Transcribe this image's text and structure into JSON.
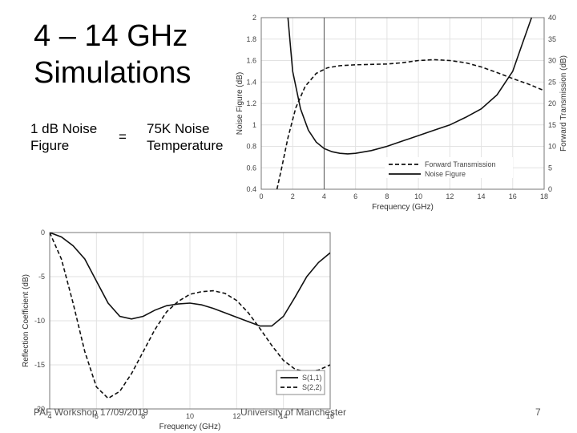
{
  "slide": {
    "title_line1": "4 – 14 GHz",
    "title_line2": "Simulations",
    "equivalence": {
      "left_line1": "1 dB Noise",
      "left_line2": "Figure",
      "sign": "=",
      "right_line1": "75K Noise",
      "right_line2": "Temperature"
    },
    "footer": {
      "left": "PAF Workshop 17/09/2019",
      "center": "University of Manchester",
      "page": "7"
    }
  },
  "chart_data": [
    {
      "type": "line",
      "xlabel": "Frequency (GHz)",
      "ylabel": "Noise Figure (dB)",
      "y2label": "Forward Transmission (dB)",
      "xlim": [
        0,
        18
      ],
      "ylim": [
        0.4,
        2
      ],
      "y2lim": [
        0,
        40
      ],
      "xticks": [
        "0",
        "2",
        "4",
        "6",
        "8",
        "10",
        "12",
        "14",
        "16",
        "18"
      ],
      "yticks": [
        "0.4",
        "0.6",
        "0.8",
        "1",
        "1.2",
        "1.4",
        "1.6",
        "1.8",
        "2"
      ],
      "y2ticks": [
        "0",
        "5",
        "10",
        "15",
        "20",
        "25",
        "30",
        "35",
        "40"
      ],
      "marker_x": 4,
      "legend_position": "bottom-right",
      "series": [
        {
          "name": "Forward Transmission",
          "style": "dashed",
          "axis": "right",
          "x": [
            1.0,
            1.3,
            1.7,
            2.2,
            2.8,
            3.5,
            4.2,
            5,
            6,
            7,
            8,
            9,
            10,
            11,
            12,
            13,
            14,
            15,
            16,
            17,
            18
          ],
          "y": [
            0,
            5,
            12,
            19,
            24,
            27,
            28.3,
            28.8,
            29.0,
            29.1,
            29.2,
            29.5,
            30.0,
            30.2,
            30.0,
            29.5,
            28.5,
            27.2,
            25.8,
            24.5,
            23.0
          ]
        },
        {
          "name": "Noise Figure",
          "style": "solid",
          "axis": "left",
          "x": [
            1.7,
            2.0,
            2.5,
            3.0,
            3.5,
            4.0,
            4.5,
            5.0,
            5.5,
            6.0,
            7,
            8,
            9,
            10,
            11,
            12,
            13,
            14,
            15,
            16,
            16.6,
            17.2
          ],
          "y": [
            2.0,
            1.5,
            1.15,
            0.95,
            0.84,
            0.78,
            0.75,
            0.735,
            0.73,
            0.735,
            0.76,
            0.8,
            0.85,
            0.9,
            0.95,
            1.0,
            1.07,
            1.15,
            1.28,
            1.5,
            1.75,
            2.0
          ]
        }
      ]
    },
    {
      "type": "line",
      "xlabel": "Frequency (GHz)",
      "ylabel": "Reflection Coefficient (dB)",
      "xlim": [
        4,
        16
      ],
      "ylim": [
        -20,
        0
      ],
      "xticks": [
        "4",
        "6",
        "8",
        "10",
        "12",
        "14",
        "16"
      ],
      "yticks": [
        "0",
        "-5",
        "-10",
        "-15",
        "-20"
      ],
      "legend_position": "bottom-right",
      "series": [
        {
          "name": "S(1,1)",
          "style": "solid",
          "x": [
            4,
            4.5,
            5,
            5.5,
            6,
            6.5,
            7,
            7.5,
            8,
            8.5,
            9,
            9.5,
            10,
            10.5,
            11,
            11.5,
            12,
            12.5,
            13,
            13.5,
            14,
            14.5,
            15,
            15.5,
            16
          ],
          "y": [
            0,
            -0.5,
            -1.5,
            -3.0,
            -5.5,
            -8.0,
            -9.5,
            -9.8,
            -9.5,
            -8.8,
            -8.3,
            -8.1,
            -8.0,
            -8.2,
            -8.6,
            -9.1,
            -9.6,
            -10.1,
            -10.6,
            -10.6,
            -9.5,
            -7.3,
            -5.0,
            -3.4,
            -2.3
          ]
        },
        {
          "name": "S(2,2)",
          "style": "dashed",
          "x": [
            4,
            4.5,
            5,
            5.5,
            6,
            6.5,
            7,
            7.5,
            8,
            8.5,
            9,
            9.5,
            10,
            10.5,
            11,
            11.5,
            12,
            12.5,
            13,
            13.5,
            14,
            14.5,
            15,
            15.5,
            16
          ],
          "y": [
            0,
            -3.0,
            -8.0,
            -13.5,
            -17.5,
            -18.8,
            -18.0,
            -16.0,
            -13.5,
            -11.0,
            -9.0,
            -7.8,
            -7.0,
            -6.7,
            -6.6,
            -6.9,
            -7.7,
            -9.1,
            -10.9,
            -12.8,
            -14.5,
            -15.5,
            -15.8,
            -15.6,
            -15.0
          ]
        }
      ]
    }
  ]
}
